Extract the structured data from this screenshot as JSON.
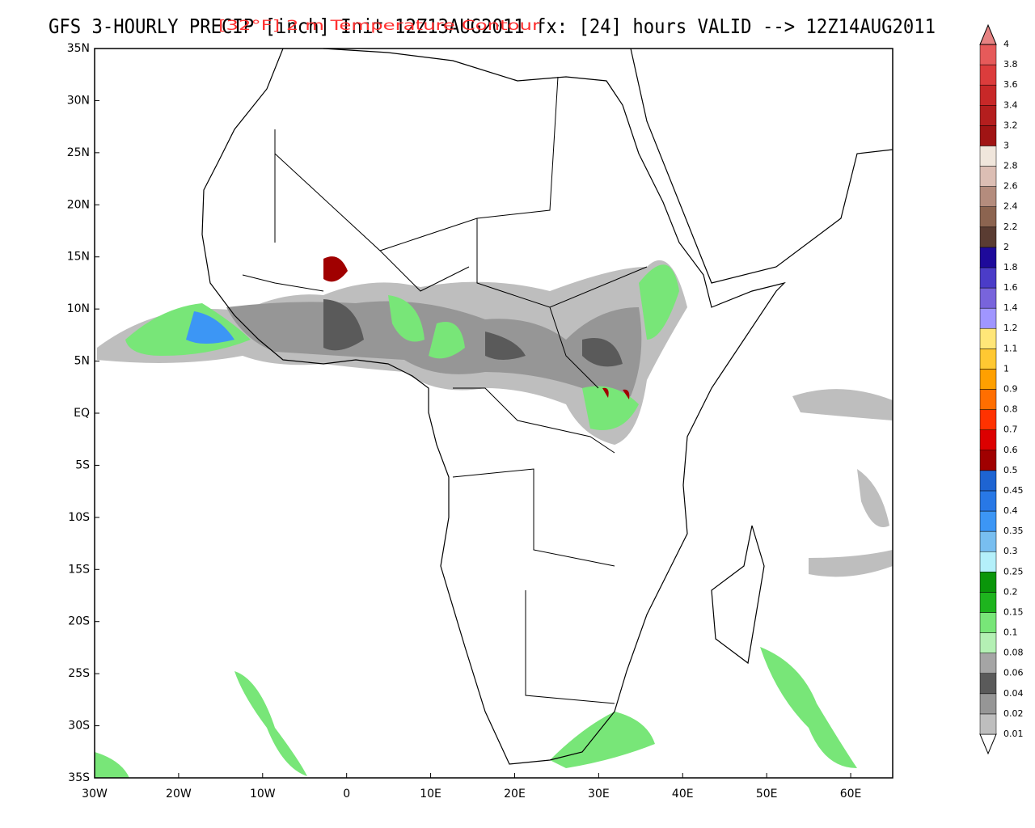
{
  "header": {
    "title": "GFS 3-HOURLY PRECIP [inch] Init 12Z13AUG2011 fx: [24] hours VALID --> 12Z14AUG2011",
    "overlay": "[32°F] 2 m Temperature Contour"
  },
  "map": {
    "xlim": [
      -30,
      65
    ],
    "ylim": [
      -35,
      35
    ],
    "xticks": [
      {
        "value": -30,
        "label": "30W"
      },
      {
        "value": -20,
        "label": "20W"
      },
      {
        "value": -10,
        "label": "10W"
      },
      0,
      {
        "value": 10,
        "label": "10E"
      },
      {
        "value": 20,
        "label": "20E"
      },
      {
        "value": 30,
        "label": "30E"
      },
      {
        "value": 40,
        "label": "40E"
      },
      {
        "value": 50,
        "label": "50E"
      },
      {
        "value": 60,
        "label": "60E"
      }
    ],
    "yticks": [
      {
        "value": -35,
        "label": "35S"
      },
      {
        "value": -30,
        "label": "30S"
      },
      {
        "value": -25,
        "label": "25S"
      },
      {
        "value": -20,
        "label": "20S"
      },
      {
        "value": -15,
        "label": "15S"
      },
      {
        "value": -10,
        "label": "10S"
      },
      {
        "value": -5,
        "label": "5S"
      },
      {
        "value": 0,
        "label": "EQ"
      },
      {
        "value": 5,
        "label": "5N"
      },
      {
        "value": 10,
        "label": "10N"
      },
      {
        "value": 15,
        "label": "15N"
      },
      {
        "value": 20,
        "label": "20N"
      },
      {
        "value": 25,
        "label": "25N"
      },
      {
        "value": 30,
        "label": "30N"
      },
      {
        "value": 35,
        "label": "35N"
      }
    ]
  },
  "colorbar": {
    "levels": [
      0.01,
      0.02,
      0.04,
      0.06,
      0.08,
      0.1,
      0.15,
      0.2,
      0.25,
      0.3,
      0.35,
      0.4,
      0.45,
      0.5,
      0.6,
      0.7,
      0.8,
      0.9,
      1,
      1.1,
      1.2,
      1.4,
      1.6,
      1.8,
      2,
      2.2,
      2.4,
      2.6,
      2.8,
      3,
      3.2,
      3.4,
      3.6,
      3.8,
      4
    ],
    "under_color": "#ffffff",
    "colors": [
      "#bebebe",
      "#969696",
      "#5a5a5a",
      "#a5a5a5",
      "#b4f0b4",
      "#78e678",
      "#1eb41e",
      "#0a960a",
      "#b4f0fa",
      "#78bef0",
      "#3c96f5",
      "#2878e6",
      "#1e64d2",
      "#a00000",
      "#dc0000",
      "#ff3200",
      "#ff6e00",
      "#ffa000",
      "#ffc832",
      "#ffe678",
      "#a096ff",
      "#7864dc",
      "#4b3cc8",
      "#1e0a9b",
      "#5a3c32",
      "#8c6450",
      "#b48c7d",
      "#dcbeb4",
      "#f0e6dc",
      "#a01414",
      "#b41e1e",
      "#c82828",
      "#dc3c3c",
      "#e65a5a",
      "#e68282"
    ]
  }
}
